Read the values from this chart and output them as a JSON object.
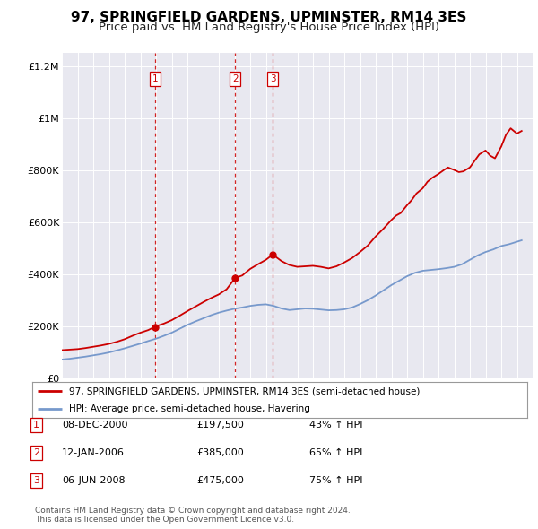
{
  "title": "97, SPRINGFIELD GARDENS, UPMINSTER, RM14 3ES",
  "subtitle": "Price paid vs. HM Land Registry's House Price Index (HPI)",
  "title_fontsize": 11,
  "subtitle_fontsize": 9.5,
  "background_color": "#ffffff",
  "plot_bg_color": "#e8e8f0",
  "red_line_color": "#cc0000",
  "blue_line_color": "#7799cc",
  "ylim": [
    0,
    1250000
  ],
  "yticks": [
    0,
    200000,
    400000,
    600000,
    800000,
    1000000,
    1200000
  ],
  "ytick_labels": [
    "£0",
    "£200K",
    "£400K",
    "£600K",
    "£800K",
    "£1M",
    "£1.2M"
  ],
  "xmin": 1995,
  "xmax": 2025,
  "sale_dates": [
    2000.93,
    2006.04,
    2008.44
  ],
  "sale_prices": [
    197500,
    385000,
    475000
  ],
  "sale_labels": [
    "1",
    "2",
    "3"
  ],
  "vline_dates": [
    2000.93,
    2006.04,
    2008.44
  ],
  "legend_red": "97, SPRINGFIELD GARDENS, UPMINSTER, RM14 3ES (semi-detached house)",
  "legend_blue": "HPI: Average price, semi-detached house, Havering",
  "table_entries": [
    {
      "num": "1",
      "date": "08-DEC-2000",
      "price": "£197,500",
      "pct": "43% ↑ HPI"
    },
    {
      "num": "2",
      "date": "12-JAN-2006",
      "price": "£385,000",
      "pct": "65% ↑ HPI"
    },
    {
      "num": "3",
      "date": "06-JUN-2008",
      "price": "£475,000",
      "pct": "75% ↑ HPI"
    }
  ],
  "footer": "Contains HM Land Registry data © Crown copyright and database right 2024.\nThis data is licensed under the Open Government Licence v3.0."
}
